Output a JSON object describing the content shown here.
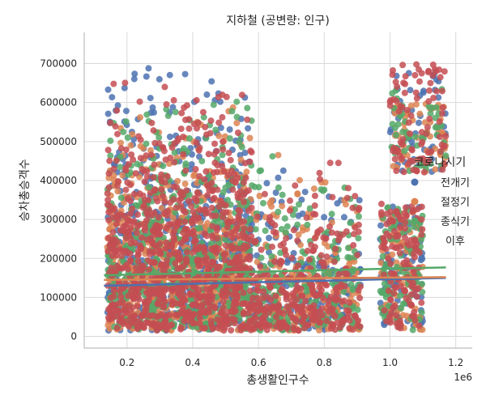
{
  "chart_data": {
    "type": "scatter",
    "title": "지하철 (공변량: 인구)",
    "xlabel": "총생활인구수",
    "ylabel": "승차총승객수",
    "x_scale_note": "1e6",
    "xlim": [
      0.07,
      1.25
    ],
    "ylim": [
      -30000,
      780000
    ],
    "x_ticks": [
      0.2,
      0.4,
      0.6,
      0.8,
      1.0,
      1.2
    ],
    "x_tick_labels": [
      "0.2",
      "0.4",
      "0.6",
      "0.8",
      "1.0",
      "1.2"
    ],
    "y_ticks": [
      0,
      100000,
      200000,
      300000,
      400000,
      500000,
      600000,
      700000
    ],
    "y_tick_labels": [
      "0",
      "100000",
      "200000",
      "300000",
      "400000",
      "500000",
      "600000",
      "700000"
    ],
    "grid": true,
    "legend": {
      "title": "코로나시기",
      "placement": "right",
      "entries": [
        "전개기",
        "절정기",
        "종식기",
        "이후"
      ]
    },
    "series": [
      {
        "name": "전개기",
        "color": "#4c72b0",
        "x_range": [
          0.13,
          1.17
        ],
        "y_range": [
          15000,
          740000
        ],
        "point_count": 900,
        "regression": {
          "x": [
            0.13,
            1.17
          ],
          "y": [
            130000,
            150000
          ]
        }
      },
      {
        "name": "절정기",
        "color": "#dd8452",
        "x_range": [
          0.13,
          1.17
        ],
        "y_range": [
          15000,
          600000
        ],
        "point_count": 900,
        "regression": {
          "x": [
            0.13,
            1.17
          ],
          "y": [
            145000,
            152000
          ]
        }
      },
      {
        "name": "종식기",
        "color": "#55a868",
        "x_range": [
          0.13,
          1.17
        ],
        "y_range": [
          15000,
          640000
        ],
        "point_count": 900,
        "regression": {
          "x": [
            0.13,
            1.17
          ],
          "y": [
            157000,
            177000
          ]
        }
      },
      {
        "name": "이후",
        "color": "#c44e52",
        "x_range": [
          0.13,
          1.2
        ],
        "y_range": [
          15000,
          700000
        ],
        "point_count": 1400,
        "regression": null
      }
    ]
  }
}
